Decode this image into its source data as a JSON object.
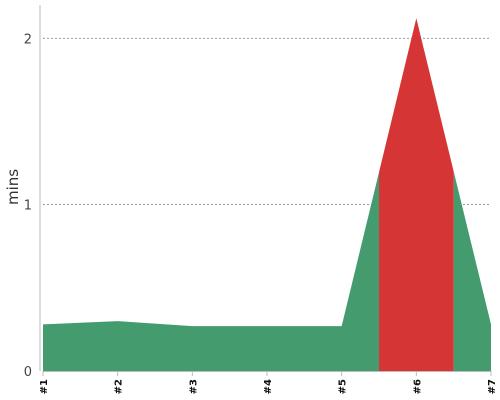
{
  "chart_data": {
    "type": "area",
    "ylabel": "mins",
    "categories": [
      "#1",
      "#2",
      "#3",
      "#4",
      "#5",
      "#6",
      "#7"
    ],
    "ylim": [
      0,
      2.2
    ],
    "yticks": [
      0,
      1,
      2
    ],
    "grid": true,
    "values": [
      0.28,
      0.3,
      0.27,
      0.27,
      0.27,
      2.12,
      0.28
    ],
    "colors": {
      "normal": "#449c6e",
      "highlight": "#d63535"
    },
    "highlight_index": 5
  }
}
